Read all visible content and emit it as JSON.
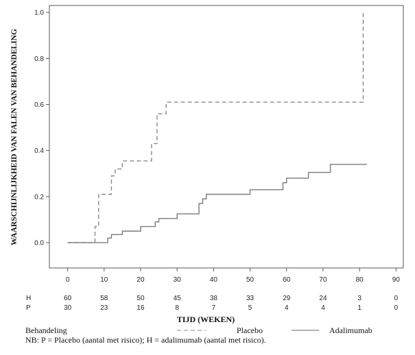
{
  "chart_data": {
    "type": "line",
    "xlabel": "TIJD (WEKEN)",
    "ylabel": "WAARSCHIJNLIJKHEID VAN FALEN VAN BEHANDELING",
    "xlim": [
      -5,
      92
    ],
    "ylim": [
      -0.11,
      1.03
    ],
    "x_ticks": [
      "0",
      "10",
      "20",
      "30",
      "40",
      "50",
      "60",
      "70",
      "80",
      "90"
    ],
    "y_ticks": [
      "0.0",
      "0.2",
      "0.4",
      "0.6",
      "0.8",
      "1.0"
    ],
    "x_tick_values": [
      0,
      10,
      20,
      30,
      40,
      50,
      60,
      70,
      80,
      90
    ],
    "y_tick_values": [
      0,
      0.2,
      0.4,
      0.6,
      0.8,
      1.0
    ],
    "grid": false,
    "series": [
      {
        "name": "Placebo",
        "style": "dashed",
        "color": "#888888",
        "x": [
          0,
          7,
          7.5,
          8.5,
          10,
          12,
          13,
          15,
          22,
          23,
          24.5,
          25,
          27,
          47,
          81
        ],
        "y": [
          0,
          0,
          0.07,
          0.21,
          0.21,
          0.29,
          0.32,
          0.355,
          0.355,
          0.43,
          0.56,
          0.56,
          0.61,
          0.61,
          0.67
        ],
        "end": [
          81,
          1.0
        ]
      },
      {
        "name": "Adalimumab",
        "style": "solid",
        "color": "#7a7a7a",
        "x": [
          0,
          10,
          11,
          12,
          15,
          20,
          24,
          25,
          30,
          36,
          37,
          38,
          50,
          59,
          60,
          66,
          72,
          82
        ],
        "y": [
          0,
          0,
          0.02,
          0.035,
          0.05,
          0.07,
          0.09,
          0.105,
          0.125,
          0.17,
          0.19,
          0.21,
          0.23,
          0.26,
          0.28,
          0.305,
          0.34,
          0.34
        ]
      }
    ],
    "risk_table": {
      "rows": [
        {
          "label": "H",
          "values": [
            "60",
            "58",
            "50",
            "45",
            "38",
            "33",
            "29",
            "24",
            "3",
            "0"
          ]
        },
        {
          "label": "P",
          "values": [
            "30",
            "23",
            "16",
            "8",
            "7",
            "5",
            "4",
            "4",
            "1",
            "0"
          ]
        }
      ]
    }
  },
  "legend": {
    "title": "Behandeling",
    "placebo_label": "Placebo",
    "adalimumab_label": "Adalimumab"
  },
  "footnote": "NB: P = Placebo (aantal met risico); H = adalimumab (aantal met risico)."
}
